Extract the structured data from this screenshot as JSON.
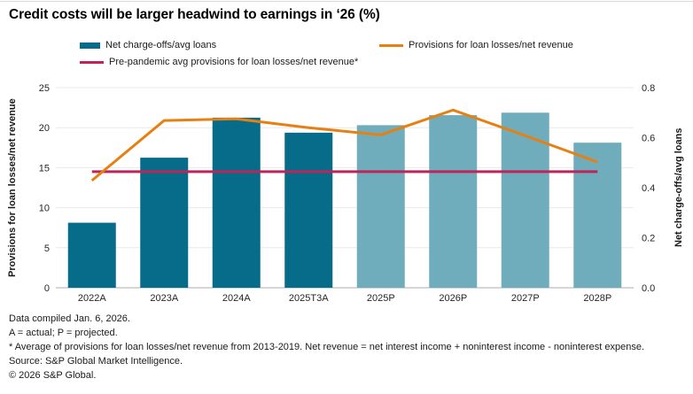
{
  "title": "Credit costs will be larger headwind to earnings in ‘26 (%)",
  "legend": {
    "bars": "Net charge-offs/avg loans",
    "provisions_line": "Provisions for loan losses/net revenue",
    "prepandemic_line": "Pre-pandemic avg provisions for loan losses/net revenue*"
  },
  "chart_data": {
    "type": "combo",
    "categories": [
      "2022A",
      "2023A",
      "2024A",
      "2025T3A",
      "2025P",
      "2026P",
      "2027P",
      "2028P"
    ],
    "series": [
      {
        "name": "Net charge-offs/avg loans",
        "type": "bar",
        "axis": "right",
        "values": [
          0.26,
          0.52,
          0.68,
          0.62,
          0.65,
          0.69,
          0.7,
          0.58
        ],
        "bar_styles": [
          "actual",
          "actual",
          "actual",
          "actual",
          "projected",
          "projected",
          "projected",
          "projected"
        ]
      },
      {
        "name": "Provisions for loan losses/net revenue",
        "type": "line",
        "axis": "left",
        "values": [
          13.4,
          20.9,
          21.1,
          20.0,
          19.1,
          22.2,
          19.0,
          15.7
        ]
      },
      {
        "name": "Pre-pandemic avg provisions for loan losses/net revenue*",
        "type": "line",
        "axis": "left",
        "values": [
          14.5,
          14.5,
          14.5,
          14.5,
          14.5,
          14.5,
          14.5,
          14.5
        ]
      }
    ],
    "left_axis": {
      "title": "Provisions for loan losses/net revenue",
      "range": [
        0,
        25
      ],
      "tick_values": [
        0,
        5,
        10,
        15,
        20,
        25
      ],
      "tick_labels": [
        "0",
        "5",
        "10",
        "15",
        "20",
        "25"
      ]
    },
    "right_axis": {
      "title": "Net charge-offs/avg loans",
      "range": [
        0,
        0.8
      ],
      "tick_values": [
        0.0,
        0.2,
        0.4,
        0.6,
        0.8
      ],
      "tick_labels": [
        "0.0",
        "0.2",
        "0.4",
        "0.6",
        "0.8"
      ]
    },
    "grid": "horizontal",
    "legend_position": "top"
  },
  "colors": {
    "bar_actual": "#066c89",
    "bar_projected": "#6fadbd",
    "provisions_line": "#e68013",
    "prepandemic_line": "#bc245a",
    "gridline": "#e8e8e8",
    "baseline": "#adadad",
    "tick_text": "#262626"
  },
  "footnotes": [
    "Data compiled Jan. 6, 2026.",
    "A = actual; P = projected.",
    "* Average of provisions for loan losses/net revenue from 2013-2019. Net revenue = net interest income + noninterest income - noninterest expense.",
    "Source: S&P Global Market Intelligence.",
    "© 2026 S&P Global."
  ]
}
